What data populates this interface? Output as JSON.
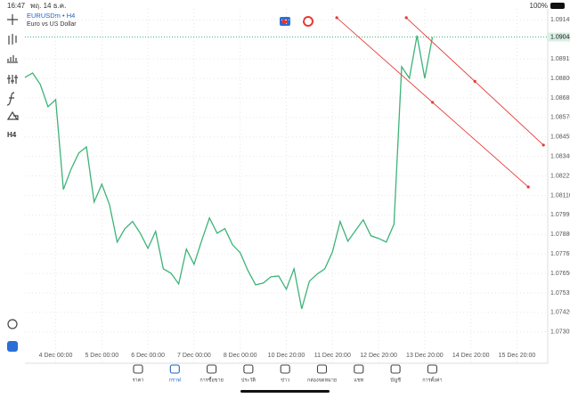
{
  "status_bar": {
    "time": "16:47",
    "date": "พฤ. 14 ธ.ค.",
    "battery": "100%"
  },
  "symbol": {
    "name": "EURUSDm • H4",
    "description": "Euro vs US Dollar"
  },
  "left_toolbar": {
    "timeframe": "H4"
  },
  "chart": {
    "type": "line",
    "color": "#3db378",
    "grid": true,
    "x": [
      0,
      1,
      2,
      3,
      4,
      5,
      6,
      7,
      8,
      9,
      10,
      11,
      12,
      13,
      14,
      15,
      16,
      17,
      18,
      19,
      20,
      21,
      22,
      23,
      24,
      25,
      26,
      27,
      28,
      29,
      30,
      31,
      32,
      33,
      34,
      35,
      36,
      37,
      38,
      39,
      40,
      41,
      42,
      43,
      44,
      45,
      46,
      47,
      48,
      49,
      50,
      51,
      52,
      53
    ],
    "values": [
      1.08806,
      1.08832,
      1.08764,
      1.08633,
      1.08675,
      1.08145,
      1.08265,
      1.0836,
      1.08396,
      1.08071,
      1.08176,
      1.08055,
      1.07835,
      1.07914,
      1.07956,
      1.07887,
      1.07798,
      1.07898,
      1.07677,
      1.07651,
      1.07588,
      1.07793,
      1.07704,
      1.07845,
      1.07977,
      1.07887,
      1.07914,
      1.07819,
      1.07772,
      1.07667,
      1.07583,
      1.07593,
      1.0763,
      1.07635,
      1.07557,
      1.07677,
      1.07441,
      1.07604,
      1.07646,
      1.07677,
      1.07777,
      1.07956,
      1.0784,
      1.07903,
      1.07966,
      1.07872,
      1.07856,
      1.07835,
      1.0794,
      1.08869,
      1.08801,
      1.09053,
      1.08801,
      1.09044
    ],
    "xlim": [
      0,
      68
    ],
    "ylim": [
      1.0712,
      1.0921
    ],
    "xticks": [
      {
        "value": 4,
        "label": "4 Dec 00:00"
      },
      {
        "value": 10,
        "label": "5 Dec 00:00"
      },
      {
        "value": 16,
        "label": "6 Dec 00:00"
      },
      {
        "value": 22,
        "label": "7 Dec 00:00"
      },
      {
        "value": 28,
        "label": "8 Dec 00:00"
      },
      {
        "value": 34,
        "label": "10 Dec 20:00"
      },
      {
        "value": 40,
        "label": "11 Dec 20:00"
      },
      {
        "value": 46,
        "label": "12 Dec 20:00"
      },
      {
        "value": 52,
        "label": "13 Dec 20:00"
      },
      {
        "value": 58,
        "label": "14 Dec 20:00"
      },
      {
        "value": 64,
        "label": "15 Dec 20:00"
      }
    ],
    "yticks": [
      1.09145,
      1.08915,
      {
        "value": 1.088,
        "label": "1.08800"
      },
      1.08685,
      {
        "value": 1.0857,
        "label": "1.08570"
      },
      1.08455,
      {
        "value": 1.0834,
        "label": "1.08340"
      },
      1.08225,
      {
        "value": 1.0811,
        "label": "1.08110"
      },
      1.07995,
      {
        "value": 1.0788,
        "label": "1.07880"
      },
      1.07765,
      {
        "value": 1.0765,
        "label": "1.07650"
      },
      1.07535,
      {
        "value": 1.0742,
        "label": "1.07420"
      },
      1.07305
    ],
    "current_price": 1.09044,
    "trendlines": [
      {
        "color": "#e53935",
        "x": [
          40.56,
          65.47
        ],
        "values": [
          1.09158,
          1.0816
        ]
      },
      {
        "color": "#e53935",
        "x": [
          49.6,
          67.44
        ],
        "values": [
          1.09158,
          1.08407
        ]
      }
    ]
  },
  "nav": {
    "tabs": [
      "ราคา",
      "กราฟ",
      "การซื้อขาย",
      "ประวัติ",
      "ข่าว",
      "กล่องจดหมาย",
      "แชท",
      "บัญชี",
      "การตั้งค่า"
    ]
  }
}
